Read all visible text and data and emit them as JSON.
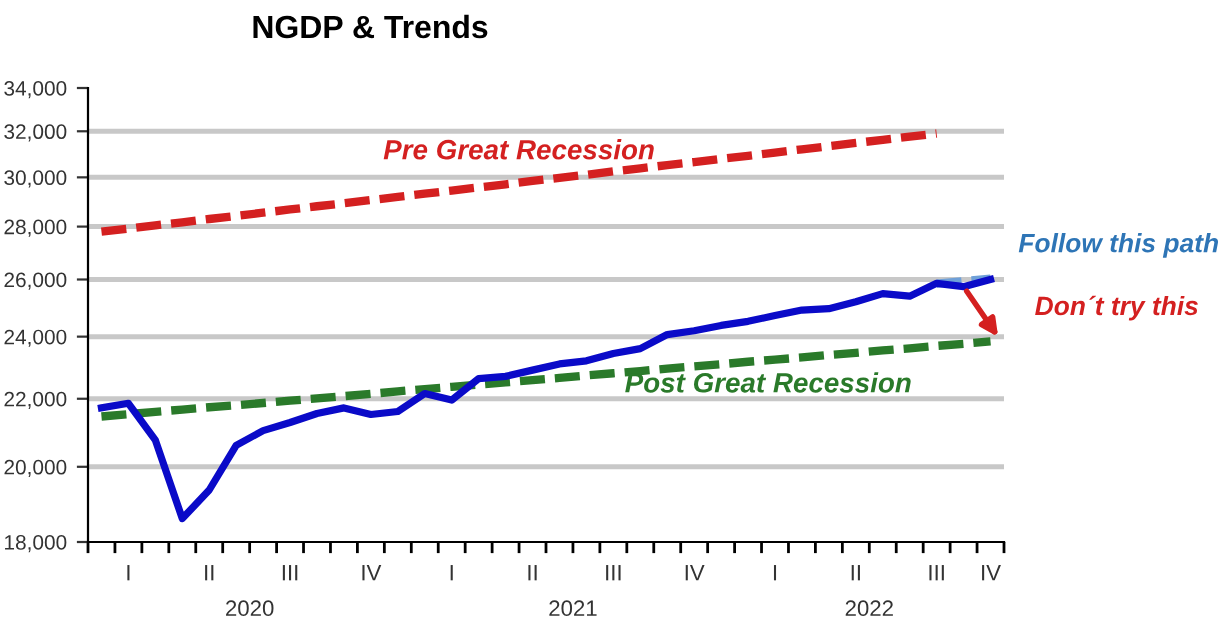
{
  "chart_data": {
    "type": "line",
    "title": "NGDP & Trends",
    "categories": [
      null,
      "I",
      null,
      null,
      "II",
      null,
      null,
      "III",
      null,
      null,
      "IV",
      null,
      null,
      "I",
      null,
      null,
      "II",
      null,
      null,
      "III",
      null,
      null,
      "IV",
      null,
      null,
      "I",
      null,
      null,
      "II",
      null,
      null,
      "III",
      null,
      "IV"
    ],
    "series": [
      {
        "name": null,
        "color": "#0a0ac8",
        "line_style": "solid",
        "values": [
          21720,
          21860,
          20760,
          18600,
          19360,
          20610,
          21040,
          21280,
          21550,
          21720,
          21520,
          21610,
          22160,
          21960,
          22630,
          22700,
          22900,
          23100,
          23200,
          23440,
          23600,
          24070,
          24200,
          24380,
          24520,
          24720,
          24910,
          24960,
          25200,
          25490,
          25400,
          25860,
          25740,
          26000
        ]
      },
      {
        "name": "Pre Great Recession",
        "color": "#d42020",
        "line_style": "dashed",
        "values": [
          27800,
          27920,
          28050,
          28170,
          28300,
          28420,
          28550,
          28680,
          28810,
          28930,
          29060,
          29190,
          29320,
          29450,
          29580,
          29710,
          29850,
          29980,
          30110,
          30250,
          30380,
          30520,
          30650,
          30790,
          30920,
          31060,
          31200,
          31340,
          31480,
          31620,
          31760,
          31900,
          null,
          null
        ]
      },
      {
        "name": "Post Great Recession",
        "color": "#2a7a2a",
        "line_style": "dashed",
        "values": [
          21460,
          21530,
          21600,
          21670,
          21740,
          21800,
          21870,
          21940,
          22010,
          22080,
          22150,
          22230,
          22300,
          22370,
          22440,
          22510,
          22580,
          22650,
          22730,
          22800,
          22870,
          22950,
          23020,
          23090,
          23170,
          23240,
          23310,
          23390,
          23460,
          23540,
          23610,
          23690,
          23760,
          23840
        ]
      },
      {
        "name": null,
        "color": "#6fa0d8",
        "line_style": "dashed",
        "values": [
          null,
          null,
          null,
          null,
          null,
          null,
          null,
          null,
          null,
          null,
          null,
          null,
          null,
          null,
          null,
          null,
          null,
          null,
          null,
          null,
          null,
          null,
          null,
          null,
          null,
          null,
          null,
          null,
          null,
          null,
          null,
          25850,
          25940,
          26030
        ]
      }
    ],
    "ylim": [
      18000,
      34000
    ],
    "yticks": [
      {
        "value": 18000,
        "label": "18,000"
      },
      {
        "value": 20000,
        "label": "20,000"
      },
      {
        "value": 22000,
        "label": "22,000"
      },
      {
        "value": 24000,
        "label": "24,000"
      },
      {
        "value": 26000,
        "label": "26,000"
      },
      {
        "value": 28000,
        "label": "28,000"
      },
      {
        "value": 30000,
        "label": "30,000"
      },
      {
        "value": 32000,
        "label": "32,000"
      },
      {
        "value": 34000,
        "label": "34,000"
      }
    ],
    "log": "y",
    "grid": "y",
    "marker": "none",
    "annotations": [
      "2020",
      "2021",
      "2022",
      "Follow this path",
      "Don´t try this"
    ]
  }
}
